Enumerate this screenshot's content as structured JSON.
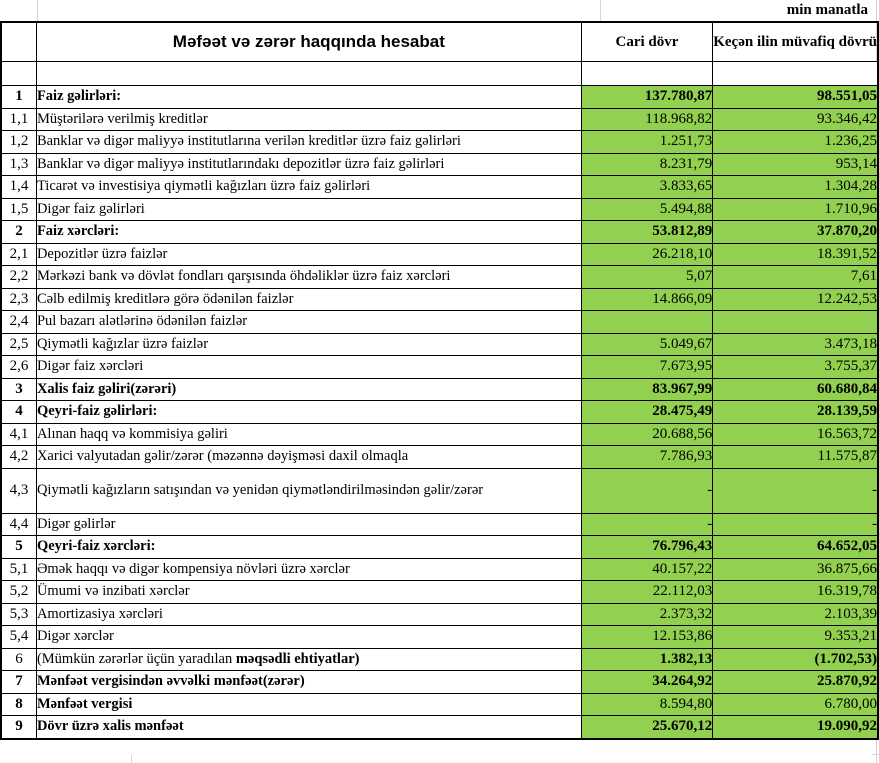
{
  "unit_note": "min manatla",
  "table": {
    "title": "Məfəət və zərər haqqında hesabat",
    "columns": {
      "current": "Cari dövr",
      "previous": "Keçən ilin müvafiq dövrü"
    },
    "rows": [
      {
        "num": "1",
        "label": "Faiz gəlirləri:",
        "label_bold": true,
        "value_bold": true,
        "current": "137.780,87",
        "previous": "98.551,05"
      },
      {
        "num": "1,1",
        "label": "Müştərilərə verilmiş kreditlər",
        "current": "118.968,82",
        "previous": "93.346,42"
      },
      {
        "num": "1,2",
        "label": "Banklar və digər maliyyə institutlarına verilən kreditlər üzrə faiz gəlirləri",
        "current": "1.251,73",
        "previous": "1.236,25"
      },
      {
        "num": "1,3",
        "label": "Banklar və digər maliyyə institutlarındakı depozitlər üzrə faiz gəlirləri",
        "current": "8.231,79",
        "previous": "953,14"
      },
      {
        "num": "1,4",
        "label": "Ticarət və investisiya qiymətli kağızları üzrə faiz gəlirləri",
        "current": "3.833,65",
        "previous": "1.304,28"
      },
      {
        "num": "1,5",
        "label": "Digər faiz gəlirləri",
        "current": "5.494,88",
        "previous": "1.710,96"
      },
      {
        "num": "2",
        "label": "Faiz xərcləri:",
        "label_bold": true,
        "value_bold": true,
        "current": "53.812,89",
        "previous": "37.870,20"
      },
      {
        "num": "2,1",
        "label": "Depozitlər üzrə faizlər",
        "current": "26.218,10",
        "previous": "18.391,52"
      },
      {
        "num": "2,2",
        "label": "Mərkəzi bank və dövlət fondları qarşısında öhdəliklər üzrə faiz xərcləri",
        "current": "5,07",
        "previous": "7,61"
      },
      {
        "num": "2,3",
        "label": "Cəlb edilmiş kreditlərə görə ödənilən faizlər",
        "current": "14.866,09",
        "previous": "12.242,53"
      },
      {
        "num": "2,4",
        "label": "Pul bazarı alətlərinə ödənilən faizlər",
        "current": "",
        "previous": ""
      },
      {
        "num": "2,5",
        "label": "Qiymətli kağızlar üzrə faizlər",
        "current": "5.049,67",
        "previous": "3.473,18"
      },
      {
        "num": "2,6",
        "label": "Digər faiz xərcləri",
        "current": "7.673,95",
        "previous": "3.755,37"
      },
      {
        "num": "3",
        "label": "Xalis faiz gəliri(zərəri)",
        "label_bold": true,
        "value_bold": true,
        "current": "83.967,99",
        "previous": "60.680,84"
      },
      {
        "num": "4",
        "label": "Qeyri-faiz gəlirləri:",
        "label_bold": true,
        "value_bold": true,
        "current": "28.475,49",
        "previous": "28.139,59"
      },
      {
        "num": "4,1",
        "label": "Alınan haqq və kommisiya gəliri",
        "current": "20.688,56",
        "previous": "16.563,72"
      },
      {
        "num": "4,2",
        "label": "Xarici valyutadan gəlir/zərər (məzənnə dəyişməsi daxil olmaqla",
        "current": "7.786,93",
        "previous": "11.575,87"
      },
      {
        "num": "4,3",
        "label": "Qiymətli kağızların satışından və yenidən qiymətləndirilməsindən gəlir/zərər",
        "current": "-",
        "previous": "-",
        "tall": true
      },
      {
        "num": "4,4",
        "label": "Digər gəlirlər",
        "current": "-",
        "previous": "-"
      },
      {
        "num": "5",
        "label": "Qeyri-faiz xərcləri:",
        "label_bold": true,
        "value_bold": true,
        "current": "76.796,43",
        "previous": "64.652,05"
      },
      {
        "num": "5,1",
        "label": "Əmək haqqı və digər kompensiya növləri üzrə xərclər",
        "current": "40.157,22",
        "previous": "36.875,66"
      },
      {
        "num": "5,2",
        "label": "Ümumi və inzibati xərclər",
        "current": "22.112,03",
        "previous": "16.319,78"
      },
      {
        "num": "5,3",
        "label": "Amortizasiya xərcləri",
        "current": "2.373,32",
        "previous": "2.103,39"
      },
      {
        "num": "5,4",
        "label": "Digər xərclər",
        "current": "12.153,86",
        "previous": "9.353,21"
      },
      {
        "num": "6",
        "label_parts": [
          {
            "text": "(Mümkün zərərlər üçün yaradılan ",
            "bold": false
          },
          {
            "text": "məqsədli ehtiyatlar)",
            "bold": true
          }
        ],
        "value_bold": true,
        "current": "1.382,13",
        "previous": "(1.702,53)"
      },
      {
        "num": "7",
        "label": "Mənfəət vergisindən əvvəlki mənfəət(zərər)",
        "label_bold": true,
        "value_bold": true,
        "current": "34.264,92",
        "previous": "25.870,92"
      },
      {
        "num": "8",
        "label": "Mənfəət vergisi",
        "label_bold": true,
        "current": "8.594,80",
        "previous": "6.780,00"
      },
      {
        "num": "9",
        "label": "Dövr üzrə xalis mənfəət",
        "label_bold": true,
        "value_bold": true,
        "current": "25.670,12",
        "previous": "19.090,92"
      }
    ]
  },
  "colors": {
    "value_cell_bg": "#92d050",
    "table_border": "#000000",
    "gridline": "#d6d6d6"
  }
}
